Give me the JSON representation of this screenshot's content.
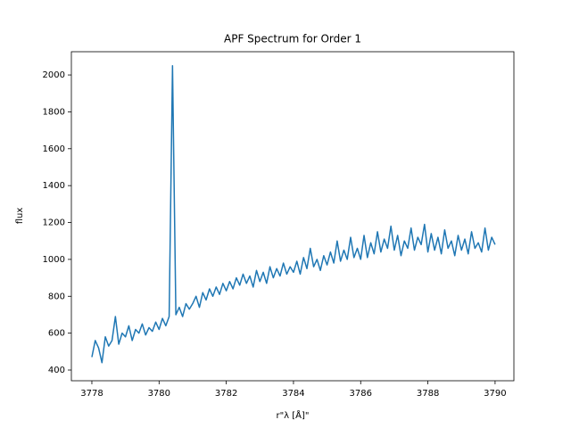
{
  "chart_data": {
    "type": "line",
    "title": "APF Spectrum for Order 1",
    "x_label": "r\"λ [Å]\"",
    "y_label": "flux",
    "color": "#1f77b4",
    "x": [
      3778.0,
      3778.1,
      3778.2,
      3778.3,
      3778.4,
      3778.5,
      3778.6,
      3778.7,
      3778.8,
      3778.9,
      3779.0,
      3779.1,
      3779.2,
      3779.3,
      3779.4,
      3779.5,
      3779.6,
      3779.7,
      3779.8,
      3779.9,
      3780.0,
      3780.1,
      3780.2,
      3780.3,
      3780.4,
      3780.5,
      3780.6,
      3780.7,
      3780.8,
      3780.9,
      3781.0,
      3781.1,
      3781.2,
      3781.3,
      3781.4,
      3781.5,
      3781.6,
      3781.7,
      3781.8,
      3781.9,
      3782.0,
      3782.1,
      3782.2,
      3782.3,
      3782.4,
      3782.5,
      3782.6,
      3782.7,
      3782.8,
      3782.9,
      3783.0,
      3783.1,
      3783.2,
      3783.3,
      3783.4,
      3783.5,
      3783.6,
      3783.7,
      3783.8,
      3783.9,
      3784.0,
      3784.1,
      3784.2,
      3784.3,
      3784.4,
      3784.5,
      3784.6,
      3784.7,
      3784.8,
      3784.9,
      3785.0,
      3785.1,
      3785.2,
      3785.3,
      3785.4,
      3785.5,
      3785.6,
      3785.7,
      3785.8,
      3785.9,
      3786.0,
      3786.1,
      3786.2,
      3786.3,
      3786.4,
      3786.5,
      3786.6,
      3786.7,
      3786.8,
      3786.9,
      3787.0,
      3787.1,
      3787.2,
      3787.3,
      3787.4,
      3787.5,
      3787.6,
      3787.7,
      3787.8,
      3787.9,
      3788.0,
      3788.1,
      3788.2,
      3788.3,
      3788.4,
      3788.5,
      3788.6,
      3788.7,
      3788.8,
      3788.9,
      3789.0,
      3789.1,
      3789.2,
      3789.3,
      3789.4,
      3789.5,
      3789.6,
      3789.7,
      3789.8,
      3789.9,
      3790.0
    ],
    "values": [
      470,
      560,
      520,
      440,
      580,
      530,
      560,
      690,
      540,
      600,
      580,
      640,
      560,
      620,
      600,
      650,
      590,
      630,
      610,
      660,
      620,
      680,
      640,
      690,
      2050,
      700,
      740,
      690,
      760,
      730,
      760,
      800,
      740,
      820,
      780,
      840,
      800,
      850,
      810,
      870,
      830,
      880,
      840,
      900,
      860,
      920,
      870,
      910,
      850,
      940,
      880,
      930,
      870,
      960,
      900,
      950,
      910,
      980,
      920,
      960,
      930,
      990,
      920,
      1010,
      950,
      1060,
      960,
      1000,
      940,
      1020,
      970,
      1040,
      980,
      1100,
      990,
      1050,
      1000,
      1120,
      1010,
      1060,
      1000,
      1130,
      1010,
      1090,
      1030,
      1150,
      1040,
      1110,
      1060,
      1180,
      1050,
      1130,
      1020,
      1100,
      1060,
      1170,
      1050,
      1120,
      1080,
      1190,
      1040,
      1140,
      1050,
      1120,
      1030,
      1160,
      1060,
      1100,
      1020,
      1130,
      1050,
      1110,
      1030,
      1150,
      1060,
      1090,
      1040,
      1170,
      1050,
      1120,
      1080
    ],
    "xlim": [
      3777.39,
      3790.56
    ],
    "ylim": [
      342,
      2126
    ],
    "xticks": [
      3778,
      3780,
      3782,
      3784,
      3786,
      3788,
      3790
    ],
    "yticks": [
      400,
      600,
      800,
      1000,
      1200,
      1400,
      1600,
      1800,
      2000
    ]
  }
}
